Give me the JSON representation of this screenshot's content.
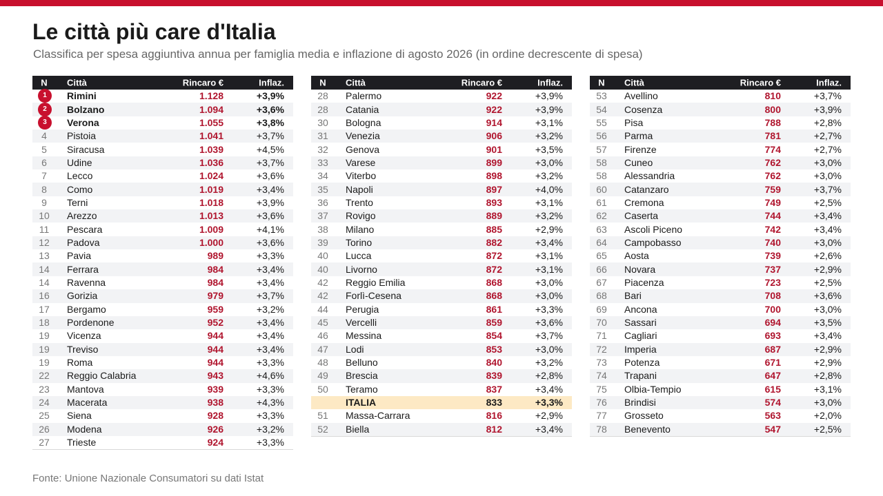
{
  "title": "Le città più care d'Italia",
  "subtitle": "Classifica per spesa aggiuntiva annua per famiglia media e inflazione di agosto 2026 (in ordine decrescente di spesa)",
  "source": "Fonte: Unione Nazionale Consumatori su dati Istat",
  "headers": {
    "n": "N",
    "city": "Città",
    "value": "Rincaro €",
    "infl": "Inflaz."
  },
  "colors": {
    "accent": "#c8102e",
    "header_bg": "#1e1e22",
    "value_red": "#b0152e",
    "highlight": "#fde9c4"
  },
  "tables": [
    {
      "rows": [
        {
          "n": "1",
          "city": "Rimini",
          "value": "1.128",
          "infl": "+3,9%",
          "medal": true
        },
        {
          "n": "2",
          "city": "Bolzano",
          "value": "1.094",
          "infl": "+3,6%",
          "medal": true
        },
        {
          "n": "3",
          "city": "Verona",
          "value": "1.055",
          "infl": "+3,8%",
          "medal": true
        },
        {
          "n": "4",
          "city": "Pistoia",
          "value": "1.041",
          "infl": "+3,7%"
        },
        {
          "n": "5",
          "city": "Siracusa",
          "value": "1.039",
          "infl": "+4,5%"
        },
        {
          "n": "6",
          "city": "Udine",
          "value": "1.036",
          "infl": "+3,7%"
        },
        {
          "n": "7",
          "city": "Lecco",
          "value": "1.024",
          "infl": "+3,6%"
        },
        {
          "n": "8",
          "city": "Como",
          "value": "1.019",
          "infl": "+3,4%"
        },
        {
          "n": "9",
          "city": "Terni",
          "value": "1.018",
          "infl": "+3,9%"
        },
        {
          "n": "10",
          "city": "Arezzo",
          "value": "1.013",
          "infl": "+3,6%"
        },
        {
          "n": "11",
          "city": "Pescara",
          "value": "1.009",
          "infl": "+4,1%"
        },
        {
          "n": "12",
          "city": "Padova",
          "value": "1.000",
          "infl": "+3,6%"
        },
        {
          "n": "13",
          "city": "Pavia",
          "value": "989",
          "infl": "+3,3%"
        },
        {
          "n": "14",
          "city": "Ferrara",
          "value": "984",
          "infl": "+3,4%"
        },
        {
          "n": "14",
          "city": "Ravenna",
          "value": "984",
          "infl": "+3,4%"
        },
        {
          "n": "16",
          "city": "Gorizia",
          "value": "979",
          "infl": "+3,7%"
        },
        {
          "n": "17",
          "city": "Bergamo",
          "value": "959",
          "infl": "+3,2%"
        },
        {
          "n": "18",
          "city": "Pordenone",
          "value": "952",
          "infl": "+3,4%"
        },
        {
          "n": "19",
          "city": "Vicenza",
          "value": "944",
          "infl": "+3,4%"
        },
        {
          "n": "19",
          "city": "Treviso",
          "value": "944",
          "infl": "+3,4%"
        },
        {
          "n": "19",
          "city": "Roma",
          "value": "944",
          "infl": "+3,3%"
        },
        {
          "n": "22",
          "city": "Reggio Calabria",
          "value": "943",
          "infl": "+4,6%"
        },
        {
          "n": "23",
          "city": "Mantova",
          "value": "939",
          "infl": "+3,3%"
        },
        {
          "n": "24",
          "city": "Macerata",
          "value": "938",
          "infl": "+4,3%"
        },
        {
          "n": "25",
          "city": "Siena",
          "value": "928",
          "infl": "+3,3%"
        },
        {
          "n": "26",
          "city": "Modena",
          "value": "926",
          "infl": "+3,2%"
        },
        {
          "n": "27",
          "city": "Trieste",
          "value": "924",
          "infl": "+3,3%"
        }
      ]
    },
    {
      "rows": [
        {
          "n": "28",
          "city": "Palermo",
          "value": "922",
          "infl": "+3,9%"
        },
        {
          "n": "28",
          "city": "Catania",
          "value": "922",
          "infl": "+3,9%"
        },
        {
          "n": "30",
          "city": "Bologna",
          "value": "914",
          "infl": "+3,1%"
        },
        {
          "n": "31",
          "city": "Venezia",
          "value": "906",
          "infl": "+3,2%"
        },
        {
          "n": "32",
          "city": "Genova",
          "value": "901",
          "infl": "+3,5%"
        },
        {
          "n": "33",
          "city": "Varese",
          "value": "899",
          "infl": "+3,0%"
        },
        {
          "n": "34",
          "city": "Viterbo",
          "value": "898",
          "infl": "+3,2%"
        },
        {
          "n": "35",
          "city": "Napoli",
          "value": "897",
          "infl": "+4,0%"
        },
        {
          "n": "36",
          "city": "Trento",
          "value": "893",
          "infl": "+3,1%"
        },
        {
          "n": "37",
          "city": "Rovigo",
          "value": "889",
          "infl": "+3,2%"
        },
        {
          "n": "38",
          "city": "Milano",
          "value": "885",
          "infl": "+2,9%"
        },
        {
          "n": "39",
          "city": "Torino",
          "value": "882",
          "infl": "+3,4%"
        },
        {
          "n": "40",
          "city": "Lucca",
          "value": "872",
          "infl": "+3,1%"
        },
        {
          "n": "40",
          "city": "Livorno",
          "value": "872",
          "infl": "+3,1%"
        },
        {
          "n": "42",
          "city": "Reggio Emilia",
          "value": "868",
          "infl": "+3,0%"
        },
        {
          "n": "42",
          "city": "Forlì-Cesena",
          "value": "868",
          "infl": "+3,0%"
        },
        {
          "n": "44",
          "city": "Perugia",
          "value": "861",
          "infl": "+3,3%"
        },
        {
          "n": "45",
          "city": "Vercelli",
          "value": "859",
          "infl": "+3,6%"
        },
        {
          "n": "46",
          "city": "Messina",
          "value": "854",
          "infl": "+3,7%"
        },
        {
          "n": "47",
          "city": "Lodi",
          "value": "853",
          "infl": "+3,0%"
        },
        {
          "n": "48",
          "city": "Belluno",
          "value": "840",
          "infl": "+3,2%"
        },
        {
          "n": "49",
          "city": "Brescia",
          "value": "839",
          "infl": "+2,8%"
        },
        {
          "n": "50",
          "city": "Teramo",
          "value": "837",
          "infl": "+3,4%"
        },
        {
          "n": "",
          "city": "ITALIA",
          "value": "833",
          "infl": "+3,3%",
          "italia": true
        },
        {
          "n": "51",
          "city": "Massa-Carrara",
          "value": "816",
          "infl": "+2,9%"
        },
        {
          "n": "52",
          "city": "Biella",
          "value": "812",
          "infl": "+3,4%"
        }
      ]
    },
    {
      "rows": [
        {
          "n": "53",
          "city": "Avellino",
          "value": "810",
          "infl": "+3,7%"
        },
        {
          "n": "54",
          "city": "Cosenza",
          "value": "800",
          "infl": "+3,9%"
        },
        {
          "n": "55",
          "city": "Pisa",
          "value": "788",
          "infl": "+2,8%"
        },
        {
          "n": "56",
          "city": "Parma",
          "value": "781",
          "infl": "+2,7%"
        },
        {
          "n": "57",
          "city": "Firenze",
          "value": "774",
          "infl": "+2,7%"
        },
        {
          "n": "58",
          "city": "Cuneo",
          "value": "762",
          "infl": "+3,0%"
        },
        {
          "n": "58",
          "city": "Alessandria",
          "value": "762",
          "infl": "+3,0%"
        },
        {
          "n": "60",
          "city": "Catanzaro",
          "value": "759",
          "infl": "+3,7%"
        },
        {
          "n": "61",
          "city": "Cremona",
          "value": "749",
          "infl": "+2,5%"
        },
        {
          "n": "62",
          "city": "Caserta",
          "value": "744",
          "infl": "+3,4%"
        },
        {
          "n": "63",
          "city": "Ascoli Piceno",
          "value": "742",
          "infl": "+3,4%"
        },
        {
          "n": "64",
          "city": "Campobasso",
          "value": "740",
          "infl": "+3,0%"
        },
        {
          "n": "65",
          "city": "Aosta",
          "value": "739",
          "infl": "+2,6%"
        },
        {
          "n": "66",
          "city": "Novara",
          "value": "737",
          "infl": "+2,9%"
        },
        {
          "n": "67",
          "city": "Piacenza",
          "value": "723",
          "infl": "+2,5%"
        },
        {
          "n": "68",
          "city": "Bari",
          "value": "708",
          "infl": "+3,6%"
        },
        {
          "n": "69",
          "city": "Ancona",
          "value": "700",
          "infl": "+3,0%"
        },
        {
          "n": "70",
          "city": "Sassari",
          "value": "694",
          "infl": "+3,5%"
        },
        {
          "n": "71",
          "city": "Cagliari",
          "value": "693",
          "infl": "+3,4%"
        },
        {
          "n": "72",
          "city": "Imperia",
          "value": "687",
          "infl": "+2,9%"
        },
        {
          "n": "73",
          "city": "Potenza",
          "value": "671",
          "infl": "+2,9%"
        },
        {
          "n": "74",
          "city": "Trapani",
          "value": "647",
          "infl": "+2,8%"
        },
        {
          "n": "75",
          "city": "Olbia-Tempio",
          "value": "615",
          "infl": "+3,1%"
        },
        {
          "n": "76",
          "city": "Brindisi",
          "value": "574",
          "infl": "+3,0%"
        },
        {
          "n": "77",
          "city": "Grosseto",
          "value": "563",
          "infl": "+2,0%"
        },
        {
          "n": "78",
          "city": "Benevento",
          "value": "547",
          "infl": "+2,5%"
        }
      ]
    }
  ]
}
